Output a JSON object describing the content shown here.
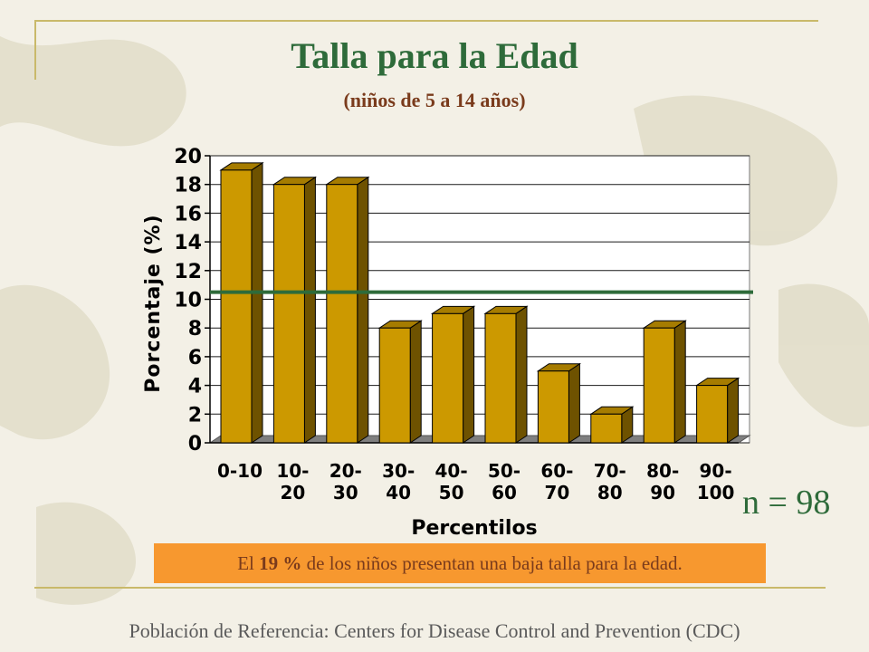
{
  "slide": {
    "title": "Talla para la Edad",
    "subtitle": "(niños de 5 a 14 años)",
    "n_label": "n = 98",
    "note_prefix": "El ",
    "note_highlight": "19 %",
    "note_suffix": " de los niños presentan una baja talla para la edad.",
    "footer": "Población de Referencia:  Centers for Disease Control and Prevention (CDC)"
  },
  "colors": {
    "bar_front": "#cc9900",
    "bar_top": "#a67c00",
    "bar_side": "#6e5200",
    "reference_line": "#2e6b3a",
    "title": "#2e6b3a",
    "accent_text": "#7a3b1c",
    "note_background": "#f7982f"
  },
  "chart_data": {
    "type": "bar",
    "style": "3d",
    "categories": [
      "0-10",
      "10-20",
      "20-30",
      "30-40",
      "40-50",
      "50-60",
      "60-70",
      "70-80",
      "80-90",
      "90-100"
    ],
    "category_labels": [
      [
        "0-10"
      ],
      [
        "10-",
        "20"
      ],
      [
        "20-",
        "30"
      ],
      [
        "30-",
        "40"
      ],
      [
        "40-",
        "50"
      ],
      [
        "50-",
        "60"
      ],
      [
        "60-",
        "70"
      ],
      [
        "70-",
        "80"
      ],
      [
        "80-",
        "90"
      ],
      [
        "90-",
        "100"
      ]
    ],
    "values": [
      19,
      18,
      18,
      8,
      9,
      9,
      5,
      2,
      8,
      4
    ],
    "reference_line": 10.5,
    "title": "",
    "xlabel": "Percentilos",
    "ylabel": "Porcentaje (%)",
    "ylim": [
      0,
      20
    ],
    "yticks": [
      0,
      2,
      4,
      6,
      8,
      10,
      12,
      14,
      16,
      18,
      20
    ],
    "grid": true,
    "legend": "none"
  }
}
